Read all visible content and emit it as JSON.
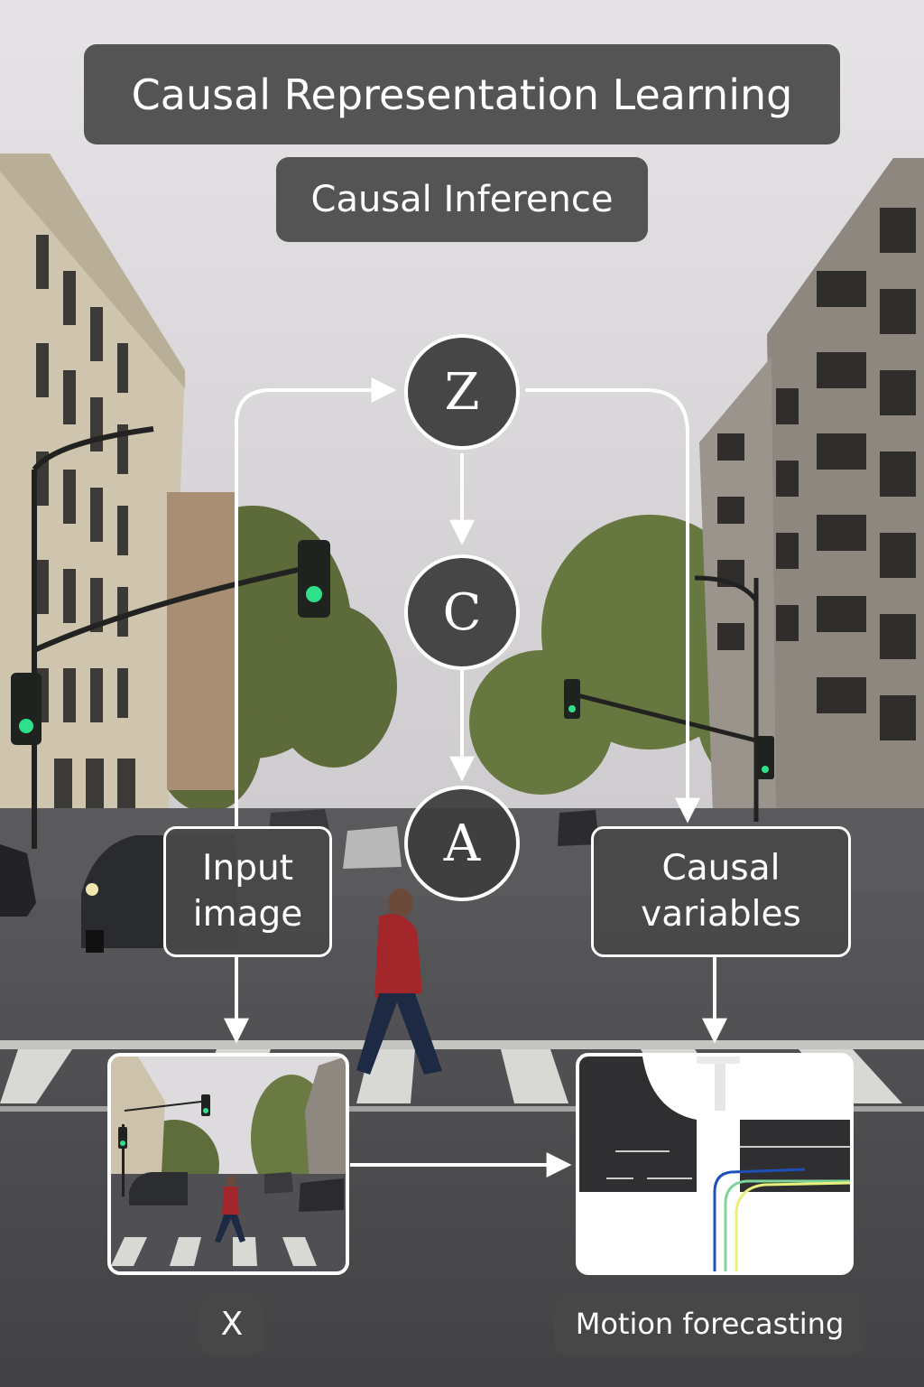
{
  "header": {
    "title": "Causal Representation Learning",
    "subtitle": "Causal Inference"
  },
  "nodes": {
    "z": "Z",
    "c": "C",
    "a": "A"
  },
  "labels": {
    "input_image": "Input image",
    "causal_variables": "Causal variables",
    "x": "X",
    "motion_forecasting": "Motion forecasting"
  },
  "colors": {
    "label_bg": "#484848",
    "arrow": "#ffffff",
    "sky": "#dcd9dc",
    "road": "#4a4a4d",
    "traffic_light_green": "#2fe08a",
    "trajectory_blue": "#1f4fb8",
    "trajectory_green": "#7fd49a",
    "trajectory_yellow": "#e8f07a"
  },
  "icons": [
    "traffic-light-icon",
    "pedestrian-icon",
    "car-icon"
  ]
}
